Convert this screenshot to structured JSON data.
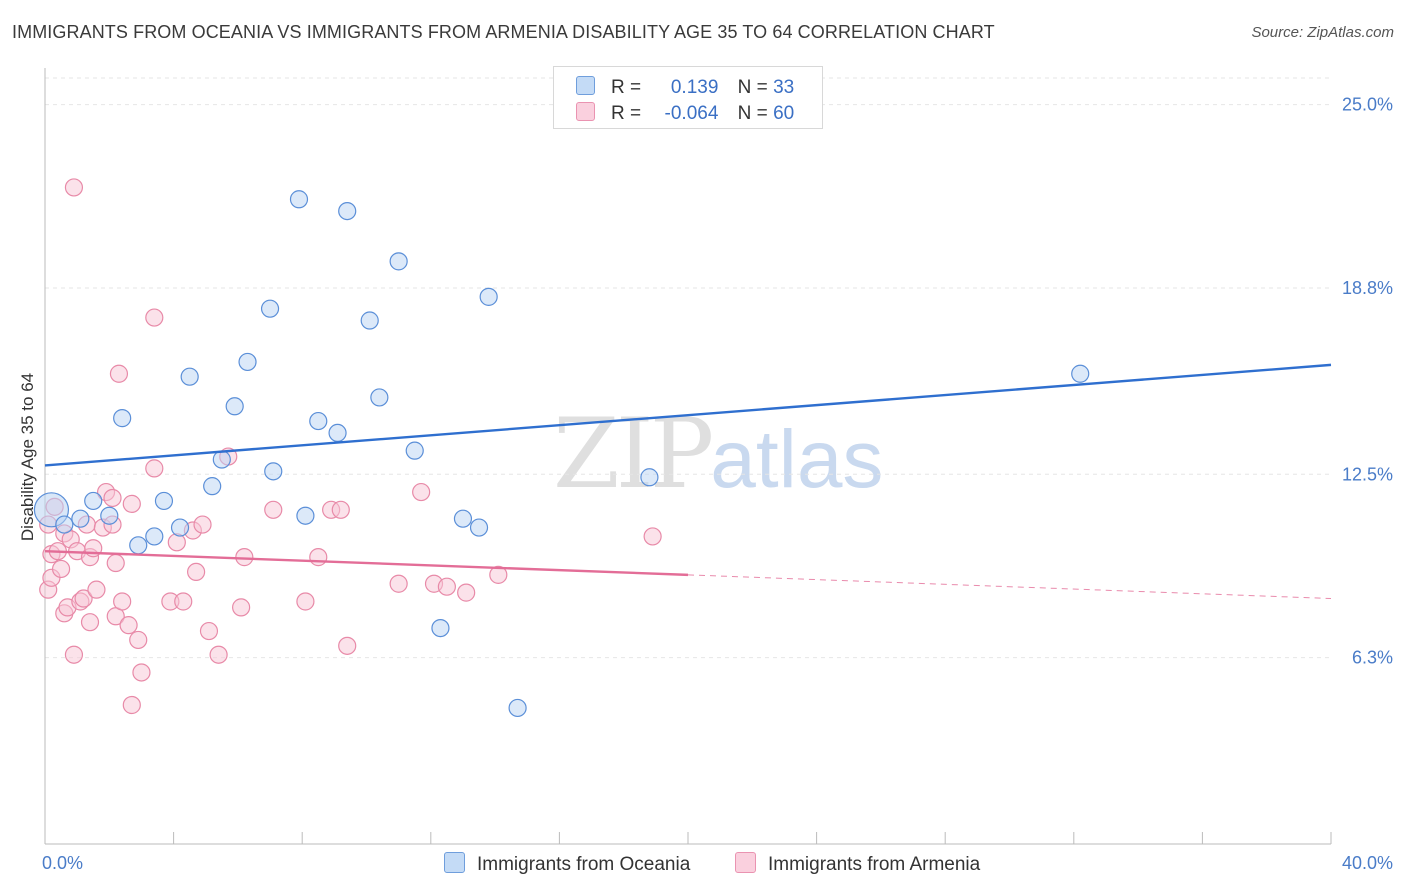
{
  "title": "IMMIGRANTS FROM OCEANIA VS IMMIGRANTS FROM ARMENIA DISABILITY AGE 35 TO 64 CORRELATION CHART",
  "source": "Source: ZipAtlas.com",
  "watermark": {
    "zip": "ZIP",
    "atlas": "atlas"
  },
  "legend_top": [
    {
      "r_label": "R =",
      "r_value": "0.139",
      "n_label": "N =",
      "n_value": "33",
      "color": "#a9c8f0"
    },
    {
      "r_label": "R =",
      "r_value": "-0.064",
      "n_label": "N =",
      "n_value": "60",
      "color": "#f5b8cc"
    }
  ],
  "colors": {
    "oceania_fill": "#b9d3f3",
    "oceania_stroke": "#5b8fd8",
    "oceania_line": "#2f6fcf",
    "armenia_fill": "#f8c6d6",
    "armenia_stroke": "#e88aa8",
    "armenia_line": "#e36d97",
    "grid": "#e6e6e6",
    "axis": "#bbbbbb"
  },
  "chart_data": {
    "type": "scatter",
    "title": "IMMIGRANTS FROM OCEANIA VS IMMIGRANTS FROM ARMENIA DISABILITY AGE 35 TO 64 CORRELATION CHART",
    "xlabel": "",
    "ylabel": "Disability Age 35 to 64",
    "xlim": [
      0,
      40
    ],
    "ylim": [
      0,
      25.9
    ],
    "y_ticks": [
      6.3,
      12.5,
      18.8,
      25.0
    ],
    "y_tick_labels": [
      "6.3%",
      "12.5%",
      "18.8%",
      "25.0%"
    ],
    "x_tick_labels": [
      "0.0%",
      "40.0%"
    ],
    "grid": true,
    "legend": "bottom",
    "series": [
      {
        "name": "Immigrants from Oceania",
        "points": [
          [
            0.2,
            11.3
          ],
          [
            0.6,
            10.8
          ],
          [
            1.1,
            11.0
          ],
          [
            1.5,
            11.6
          ],
          [
            2.0,
            11.1
          ],
          [
            2.4,
            14.4
          ],
          [
            2.9,
            10.1
          ],
          [
            3.4,
            10.4
          ],
          [
            3.7,
            11.6
          ],
          [
            4.2,
            10.7
          ],
          [
            4.5,
            15.8
          ],
          [
            5.2,
            12.1
          ],
          [
            5.5,
            13.0
          ],
          [
            5.9,
            14.8
          ],
          [
            6.3,
            16.3
          ],
          [
            7.0,
            18.1
          ],
          [
            7.1,
            12.6
          ],
          [
            7.9,
            21.8
          ],
          [
            8.1,
            11.1
          ],
          [
            8.5,
            14.3
          ],
          [
            9.1,
            13.9
          ],
          [
            9.4,
            21.4
          ],
          [
            10.1,
            17.7
          ],
          [
            10.4,
            15.1
          ],
          [
            11.0,
            19.7
          ],
          [
            11.5,
            13.3
          ],
          [
            12.3,
            7.3
          ],
          [
            13.0,
            11.0
          ],
          [
            13.5,
            10.7
          ],
          [
            13.8,
            18.5
          ],
          [
            14.7,
            4.6
          ],
          [
            18.8,
            12.4
          ],
          [
            32.2,
            15.9
          ]
        ],
        "sizes": {
          "0": "large"
        },
        "trend": {
          "x0": 0,
          "y0": 12.8,
          "x1": 40,
          "y1": 16.2
        }
      },
      {
        "name": "Immigrants from Armenia",
        "points": [
          [
            0.1,
            10.8
          ],
          [
            0.1,
            8.6
          ],
          [
            0.2,
            9.8
          ],
          [
            0.2,
            9.0
          ],
          [
            0.3,
            11.4
          ],
          [
            0.4,
            9.9
          ],
          [
            0.5,
            9.3
          ],
          [
            0.6,
            7.8
          ],
          [
            0.6,
            10.5
          ],
          [
            0.7,
            8.0
          ],
          [
            0.8,
            10.3
          ],
          [
            0.9,
            6.4
          ],
          [
            0.9,
            22.2
          ],
          [
            1.0,
            9.9
          ],
          [
            1.1,
            8.2
          ],
          [
            1.2,
            8.3
          ],
          [
            1.3,
            10.8
          ],
          [
            1.4,
            7.5
          ],
          [
            1.4,
            9.7
          ],
          [
            1.5,
            10.0
          ],
          [
            1.6,
            8.6
          ],
          [
            1.8,
            10.7
          ],
          [
            1.9,
            11.9
          ],
          [
            2.1,
            11.7
          ],
          [
            2.1,
            10.8
          ],
          [
            2.2,
            7.7
          ],
          [
            2.2,
            9.5
          ],
          [
            2.3,
            15.9
          ],
          [
            2.4,
            8.2
          ],
          [
            2.6,
            7.4
          ],
          [
            2.7,
            11.5
          ],
          [
            2.7,
            4.7
          ],
          [
            2.9,
            6.9
          ],
          [
            3.0,
            5.8
          ],
          [
            3.4,
            12.7
          ],
          [
            3.4,
            17.8
          ],
          [
            3.9,
            8.2
          ],
          [
            4.1,
            10.2
          ],
          [
            4.3,
            8.2
          ],
          [
            4.6,
            10.6
          ],
          [
            4.7,
            9.2
          ],
          [
            4.9,
            10.8
          ],
          [
            5.1,
            7.2
          ],
          [
            5.4,
            6.4
          ],
          [
            5.7,
            13.1
          ],
          [
            6.1,
            8.0
          ],
          [
            6.2,
            9.7
          ],
          [
            7.1,
            11.3
          ],
          [
            8.1,
            8.2
          ],
          [
            8.5,
            9.7
          ],
          [
            8.9,
            11.3
          ],
          [
            9.2,
            11.3
          ],
          [
            9.4,
            6.7
          ],
          [
            11.0,
            8.8
          ],
          [
            11.7,
            11.9
          ],
          [
            12.1,
            8.8
          ],
          [
            12.5,
            8.7
          ],
          [
            13.1,
            8.5
          ],
          [
            14.1,
            9.1
          ],
          [
            18.9,
            10.4
          ]
        ],
        "trend": {
          "x0": 0,
          "y0": 9.9,
          "x1": 20,
          "y1": 9.1,
          "dash_to_x": 40,
          "dash_to_y": 8.3
        }
      }
    ]
  },
  "bottom_legend": [
    {
      "label": "Immigrants from Oceania"
    },
    {
      "label": "Immigrants from Armenia"
    }
  ]
}
